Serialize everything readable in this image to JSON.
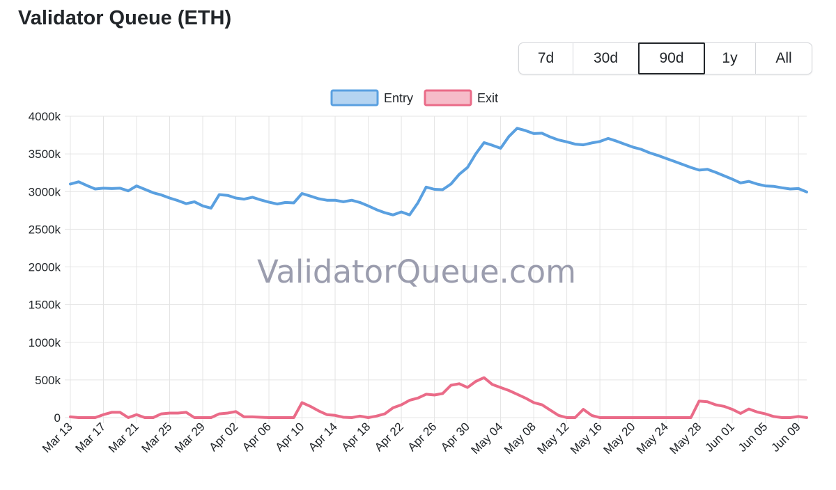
{
  "page": {
    "title": "Validator Queue (ETH)"
  },
  "range_selector": {
    "options": [
      "7d",
      "30d",
      "90d",
      "1y",
      "All"
    ],
    "selected": "90d"
  },
  "watermark": "ValidatorQueue.com",
  "colors": {
    "entry": "#5aa0e0",
    "exit": "#ea6b88",
    "grid": "#e4e4e4",
    "text": "#212529"
  },
  "chart_data": {
    "type": "line",
    "legend": {
      "position": "top"
    },
    "x": [
      "Mar 13",
      "Mar 14",
      "Mar 15",
      "Mar 16",
      "Mar 17",
      "Mar 18",
      "Mar 19",
      "Mar 20",
      "Mar 21",
      "Mar 22",
      "Mar 23",
      "Mar 24",
      "Mar 25",
      "Mar 26",
      "Mar 27",
      "Mar 28",
      "Mar 29",
      "Mar 30",
      "Mar 31",
      "Apr 01",
      "Apr 02",
      "Apr 03",
      "Apr 04",
      "Apr 05",
      "Apr 06",
      "Apr 07",
      "Apr 08",
      "Apr 09",
      "Apr 10",
      "Apr 11",
      "Apr 12",
      "Apr 13",
      "Apr 14",
      "Apr 15",
      "Apr 16",
      "Apr 17",
      "Apr 18",
      "Apr 19",
      "Apr 20",
      "Apr 21",
      "Apr 22",
      "Apr 23",
      "Apr 24",
      "Apr 25",
      "Apr 26",
      "Apr 27",
      "Apr 28",
      "Apr 29",
      "Apr 30",
      "May 01",
      "May 02",
      "May 03",
      "May 04",
      "May 05",
      "May 06",
      "May 07",
      "May 08",
      "May 09",
      "May 10",
      "May 11",
      "May 12",
      "May 13",
      "May 14",
      "May 15",
      "May 16",
      "May 17",
      "May 18",
      "May 19",
      "May 20",
      "May 21",
      "May 22",
      "May 23",
      "May 24",
      "May 25",
      "May 26",
      "May 27",
      "May 28",
      "May 29",
      "May 30",
      "May 31",
      "Jun 01",
      "Jun 02",
      "Jun 03",
      "Jun 04",
      "Jun 05",
      "Jun 06",
      "Jun 07",
      "Jun 08",
      "Jun 09",
      "Jun 10"
    ],
    "x_tick_labels": [
      "Mar 13",
      "Mar 17",
      "Mar 21",
      "Mar 25",
      "Mar 29",
      "Apr 02",
      "Apr 06",
      "Apr 10",
      "Apr 14",
      "Apr 18",
      "Apr 22",
      "Apr 26",
      "Apr 30",
      "May 04",
      "May 08",
      "May 12",
      "May 16",
      "May 20",
      "May 24",
      "May 28",
      "Jun 01",
      "Jun 05",
      "Jun 09"
    ],
    "y_ticks": [
      "0",
      "500k",
      "1000k",
      "1500k",
      "2000k",
      "2500k",
      "3000k",
      "3500k",
      "4000k"
    ],
    "ylim": [
      0,
      4000000
    ],
    "grid": true,
    "series": [
      {
        "name": "Entry",
        "color": "#5aa0e0",
        "values": [
          3100000,
          3130000,
          3080000,
          3035000,
          3045000,
          3040000,
          3045000,
          3010000,
          3075000,
          3030000,
          2985000,
          2955000,
          2915000,
          2880000,
          2840000,
          2865000,
          2810000,
          2780000,
          2960000,
          2950000,
          2915000,
          2900000,
          2925000,
          2890000,
          2860000,
          2835000,
          2855000,
          2850000,
          2975000,
          2940000,
          2905000,
          2885000,
          2885000,
          2865000,
          2885000,
          2855000,
          2810000,
          2760000,
          2720000,
          2690000,
          2730000,
          2690000,
          2850000,
          3060000,
          3030000,
          3025000,
          3100000,
          3230000,
          3320000,
          3500000,
          3650000,
          3615000,
          3575000,
          3730000,
          3840000,
          3810000,
          3770000,
          3775000,
          3725000,
          3685000,
          3660000,
          3630000,
          3620000,
          3645000,
          3665000,
          3705000,
          3670000,
          3630000,
          3590000,
          3560000,
          3515000,
          3480000,
          3440000,
          3400000,
          3360000,
          3320000,
          3285000,
          3295000,
          3255000,
          3210000,
          3165000,
          3115000,
          3135000,
          3100000,
          3075000,
          3070000,
          3050000,
          3035000,
          3040000,
          2995000
        ]
      },
      {
        "name": "Exit",
        "color": "#ea6b88",
        "values": [
          10000,
          0,
          0,
          0,
          40000,
          70000,
          70000,
          0,
          40000,
          0,
          0,
          50000,
          60000,
          60000,
          70000,
          0,
          0,
          0,
          50000,
          60000,
          80000,
          10000,
          10000,
          5000,
          0,
          0,
          0,
          0,
          200000,
          150000,
          90000,
          40000,
          30000,
          5000,
          0,
          20000,
          0,
          20000,
          50000,
          130000,
          170000,
          230000,
          260000,
          310000,
          300000,
          320000,
          430000,
          450000,
          400000,
          480000,
          530000,
          440000,
          400000,
          360000,
          310000,
          260000,
          200000,
          170000,
          100000,
          30000,
          0,
          0,
          110000,
          30000,
          0,
          0,
          0,
          0,
          0,
          0,
          0,
          0,
          0,
          0,
          0,
          0,
          220000,
          210000,
          170000,
          150000,
          110000,
          55000,
          115000,
          75000,
          50000,
          15000,
          0,
          0,
          15000,
          0
        ]
      }
    ]
  }
}
